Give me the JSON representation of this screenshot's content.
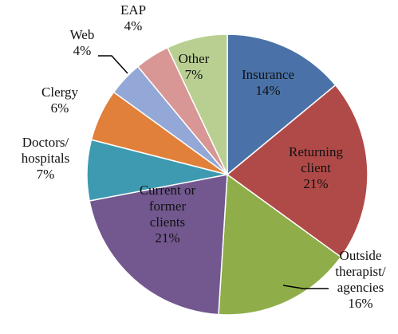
{
  "chart_data": {
    "type": "pie",
    "categories": [
      "Insurance",
      "Returning\nclient",
      "Outside\ntherapist/\nagencies",
      "Current or\nformer\nclients",
      "Doctors/\nhospitals",
      "Clergy",
      "Web",
      "EAP",
      "Other"
    ],
    "values": [
      14,
      21,
      16,
      21,
      7,
      6,
      4,
      4,
      7
    ],
    "value_labels": [
      "14%",
      "21%",
      "16%",
      "21%",
      "7%",
      "6%",
      "4%",
      "4%",
      "7%"
    ],
    "colors": [
      "#4a72a8",
      "#b04a48",
      "#8fae4a",
      "#72588f",
      "#3e9ab0",
      "#e0803a",
      "#93a8d6",
      "#d89694",
      "#b9cf92"
    ]
  }
}
